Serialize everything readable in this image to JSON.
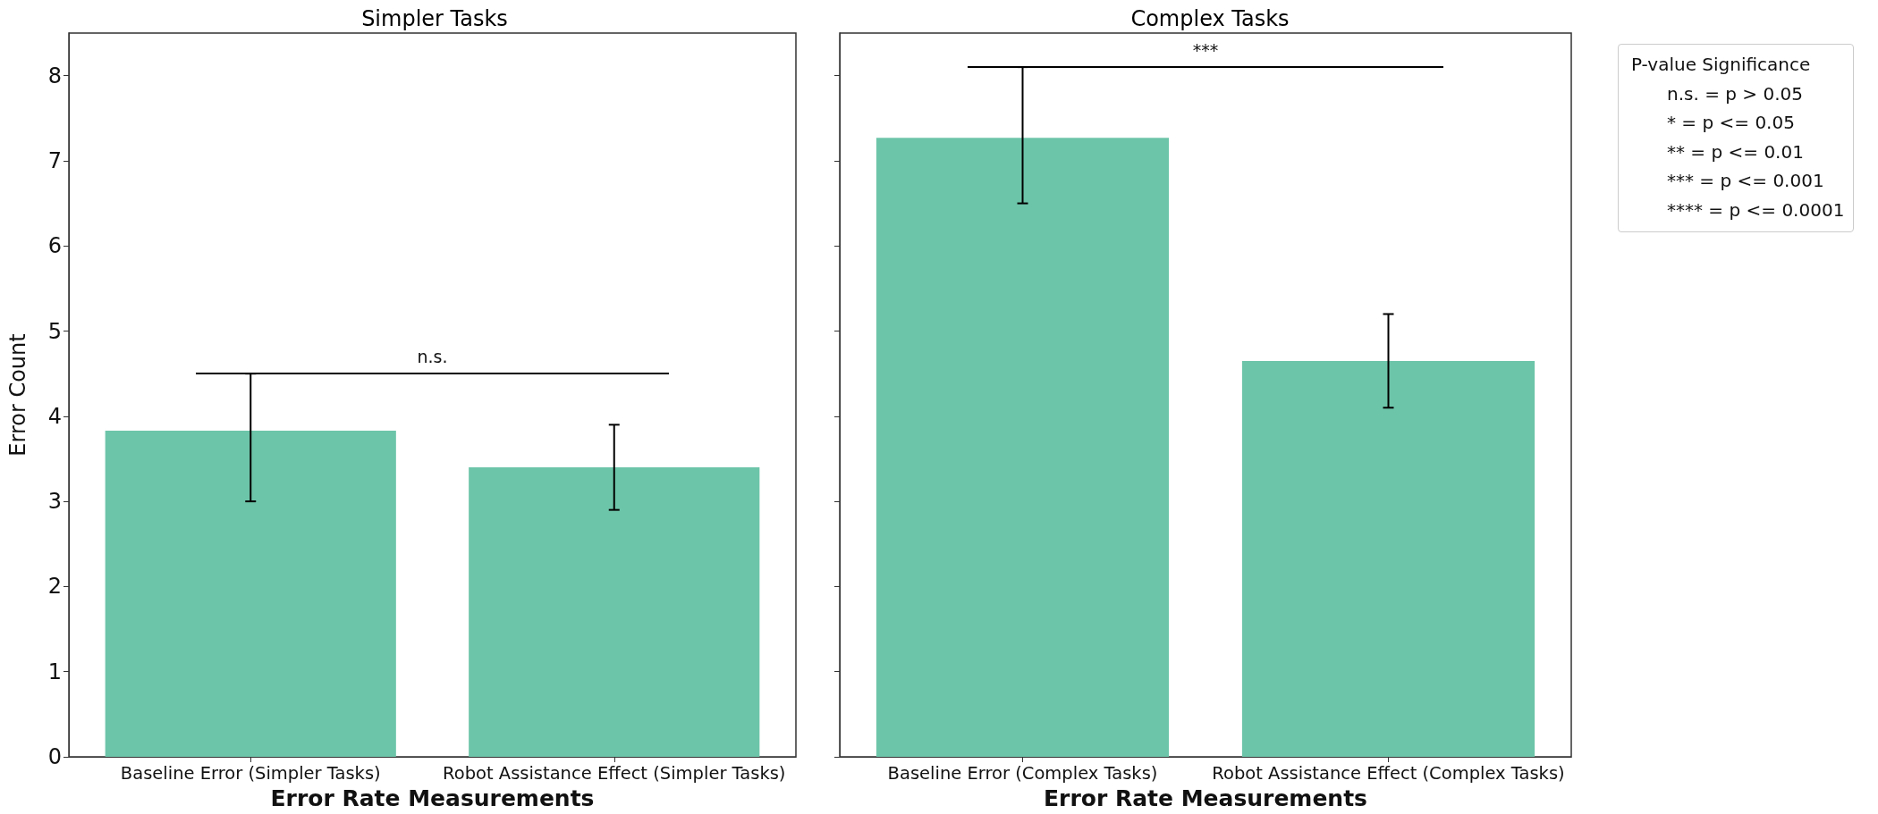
{
  "chart_data": [
    {
      "type": "bar",
      "title": "Simpler Tasks",
      "xlabel": "Error Rate Measurements",
      "ylabel": "Error Count",
      "categories": [
        "Baseline Error (Simpler Tasks)",
        "Robot Assistance Effect (Simpler Tasks)"
      ],
      "values": [
        3.83,
        3.4
      ],
      "errors": [
        [
          3.0,
          4.5
        ],
        [
          2.9,
          3.9
        ]
      ],
      "color": "#6dc5a9",
      "ylim": [
        0,
        8.5
      ],
      "yticks": [
        0,
        1,
        2,
        3,
        4,
        5,
        6,
        7,
        8
      ],
      "grid": false,
      "annotations": [
        "n.s."
      ]
    },
    {
      "type": "bar",
      "title": "Complex Tasks",
      "xlabel": "Error Rate Measurements",
      "categories": [
        "Baseline Error (Complex Tasks)",
        "Robot Assistance Effect (Complex Tasks)"
      ],
      "values": [
        7.27,
        4.65
      ],
      "errors": [
        [
          6.5,
          8.1
        ],
        [
          4.1,
          5.2
        ]
      ],
      "color": "#6dc5a9",
      "ylim": [
        0,
        8.5
      ],
      "yticks": [
        0,
        1,
        2,
        3,
        4,
        5,
        6,
        7,
        8
      ],
      "grid": false,
      "tick_labels": "x",
      "annotations": [
        "***",
        "P-value Significance",
        "n.s. = p > 0.05",
        "* = p <= 0.05",
        "** = p <= 0.01",
        "*** = p <= 0.001",
        "**** = p <= 0.0001"
      ]
    }
  ]
}
